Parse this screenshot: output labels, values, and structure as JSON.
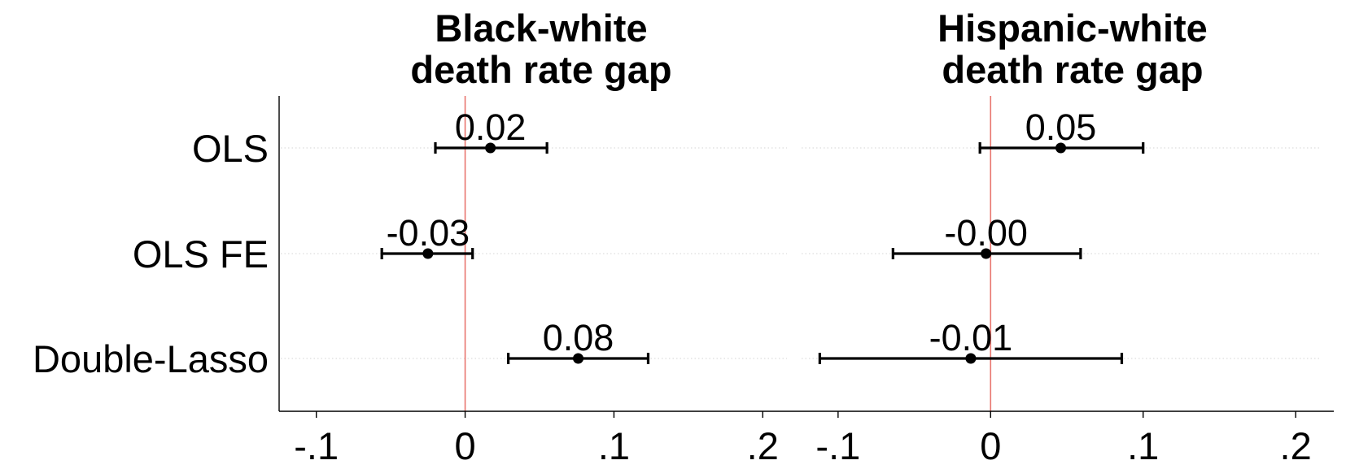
{
  "chart_data": {
    "type": "coefficient-plot",
    "categories": [
      "OLS",
      "OLS FE",
      "Double-Lasso"
    ],
    "xlim": [
      -0.125,
      0.225
    ],
    "xticks": [
      -0.1,
      0,
      0.1,
      0.2
    ],
    "xtick_labels": [
      "-.1",
      "0",
      ".1",
      ".2"
    ],
    "reference_line": {
      "x": 0,
      "color": "#e8766f"
    },
    "grid": "horizontal-dotted",
    "panels": [
      {
        "title_lines": [
          "Black-white",
          "death rate gap"
        ],
        "points": [
          {
            "label": "OLS",
            "estimate": 0.017,
            "ci_low": -0.02,
            "ci_high": 0.055,
            "value_label": "0.02"
          },
          {
            "label": "OLS FE",
            "estimate": -0.025,
            "ci_low": -0.056,
            "ci_high": 0.005,
            "value_label": "-0.03"
          },
          {
            "label": "Double-Lasso",
            "estimate": 0.076,
            "ci_low": 0.029,
            "ci_high": 0.123,
            "value_label": "0.08"
          }
        ]
      },
      {
        "title_lines": [
          "Hispanic-white",
          "death rate gap"
        ],
        "points": [
          {
            "label": "OLS",
            "estimate": 0.046,
            "ci_low": -0.007,
            "ci_high": 0.1,
            "value_label": "0.05"
          },
          {
            "label": "OLS FE",
            "estimate": -0.003,
            "ci_low": -0.064,
            "ci_high": 0.059,
            "value_label": "-0.00"
          },
          {
            "label": "Double-Lasso",
            "estimate": -0.013,
            "ci_low": -0.112,
            "ci_high": 0.086,
            "value_label": "-0.01"
          }
        ]
      }
    ]
  }
}
